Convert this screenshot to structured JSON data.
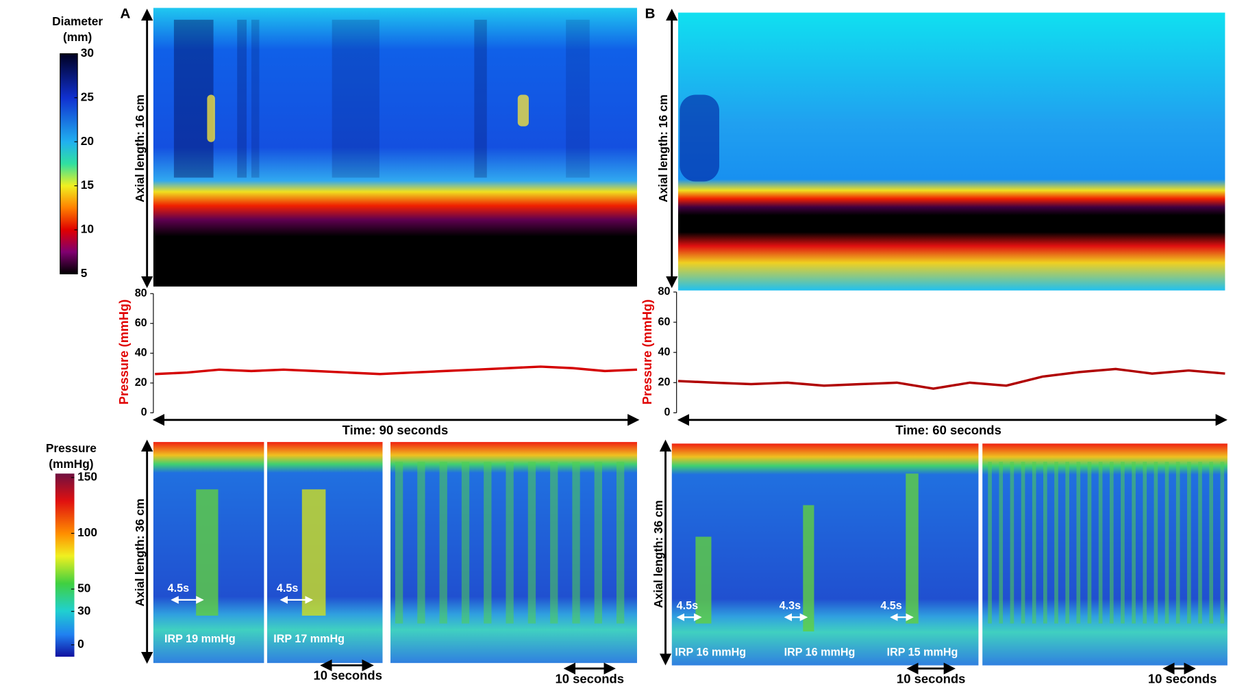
{
  "colorbars": [
    {
      "title": [
        "Diameter",
        "(mm)"
      ],
      "lim": [
        5,
        30
      ],
      "ticks": [
        30,
        25,
        20,
        15,
        10,
        5
      ]
    },
    {
      "title": [
        "Pressure",
        "(mmHg)"
      ],
      "lim": [
        0,
        150
      ],
      "ticks": [
        150,
        100,
        50,
        30,
        0
      ]
    }
  ],
  "panels": [
    {
      "label": "A",
      "diameter_axis_label": "Axial length: 16 cm",
      "pressure_chart": {
        "ylabel": "Pressure (mmHg)",
        "ylim": [
          0,
          80
        ],
        "yticks": [
          0,
          20,
          40,
          60,
          80
        ],
        "xlim": [
          0,
          90
        ],
        "x": [
          0,
          6,
          12,
          18,
          24,
          30,
          36,
          42,
          48,
          54,
          60,
          66,
          72,
          78,
          84,
          90
        ],
        "values": [
          26,
          27,
          29,
          28,
          29,
          28,
          27,
          26,
          27,
          28,
          29,
          30,
          31,
          30,
          28,
          29
        ],
        "color": "#d40000",
        "time_label": "Time:  90 seconds"
      },
      "hrm": {
        "axis_label": "Axial length: 36 cm",
        "swallows": [
          {
            "duration": "4.5s",
            "irp": "IRP 19 mmHg"
          },
          {
            "duration": "4.5s",
            "irp": "IRP 17 mmHg"
          }
        ],
        "scale_labels": [
          "10 seconds",
          "10 seconds"
        ]
      }
    },
    {
      "label": "B",
      "diameter_axis_label": "Axial length: 16 cm",
      "pressure_chart": {
        "ylabel": "Pressure (mmHg)",
        "ylim": [
          0,
          80
        ],
        "yticks": [
          0,
          20,
          40,
          60,
          80
        ],
        "xlim": [
          0,
          60
        ],
        "x": [
          0,
          4,
          8,
          12,
          16,
          20,
          24,
          28,
          32,
          36,
          40,
          44,
          48,
          52,
          56,
          60
        ],
        "values": [
          21,
          20,
          19,
          20,
          18,
          19,
          20,
          16,
          20,
          18,
          24,
          27,
          29,
          26,
          28,
          26
        ],
        "color": "#b00000",
        "time_label": "Time:  60 seconds"
      },
      "hrm": {
        "axis_label": "Axial length: 36 cm",
        "swallows": [
          {
            "duration": "4.5s",
            "irp": "IRP 16 mmHg"
          },
          {
            "duration": "4.3s",
            "irp": "IRP 16 mmHg"
          },
          {
            "duration": "4.5s",
            "irp": "IRP 15 mmHg"
          }
        ],
        "scale_labels": [
          "10 seconds",
          "10 seconds"
        ]
      }
    }
  ]
}
